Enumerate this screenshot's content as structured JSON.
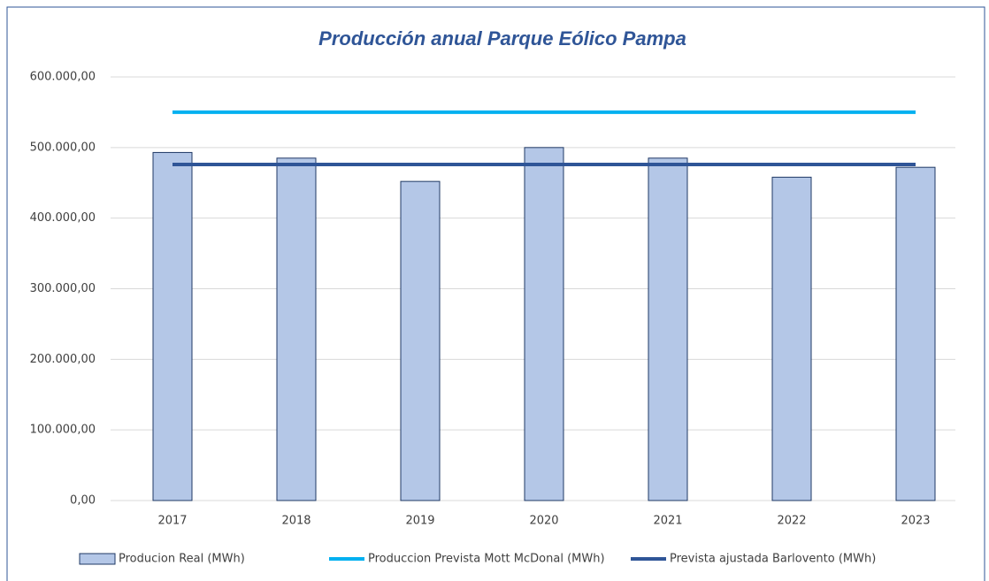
{
  "chart_data": {
    "type": "bar",
    "title": "Producción anual Parque Eólico Pampa",
    "categories": [
      "2017",
      "2018",
      "2019",
      "2020",
      "2021",
      "2022",
      "2023"
    ],
    "series": [
      {
        "name": "Producion Real (MWh)",
        "type": "bar",
        "color": "#b4c7e7",
        "stroke": "#1f3864",
        "values": [
          493000,
          485000,
          452000,
          500000,
          485000,
          458000,
          472000
        ]
      },
      {
        "name": "Produccion Prevista Mott McDonal (MWh)",
        "type": "line",
        "color": "#00b0f0",
        "values": [
          550000,
          550000,
          550000,
          550000,
          550000,
          550000,
          550000
        ]
      },
      {
        "name": "Prevista ajustada Barlovento (MWh)",
        "type": "line",
        "color": "#2f5597",
        "values": [
          476000,
          476000,
          476000,
          476000,
          476000,
          476000,
          476000
        ]
      }
    ],
    "ylim": [
      0,
      600000
    ],
    "yticks": [
      {
        "value": 0,
        "label": "0,00"
      },
      {
        "value": 100000,
        "label": "100.000,00"
      },
      {
        "value": 200000,
        "label": "200.000,00"
      },
      {
        "value": 300000,
        "label": "300.000,00"
      },
      {
        "value": 400000,
        "label": "400.000,00"
      },
      {
        "value": 500000,
        "label": "500.000,00"
      },
      {
        "value": 600000,
        "label": "600.000,00"
      }
    ],
    "grid": true,
    "legend": "bottom"
  }
}
